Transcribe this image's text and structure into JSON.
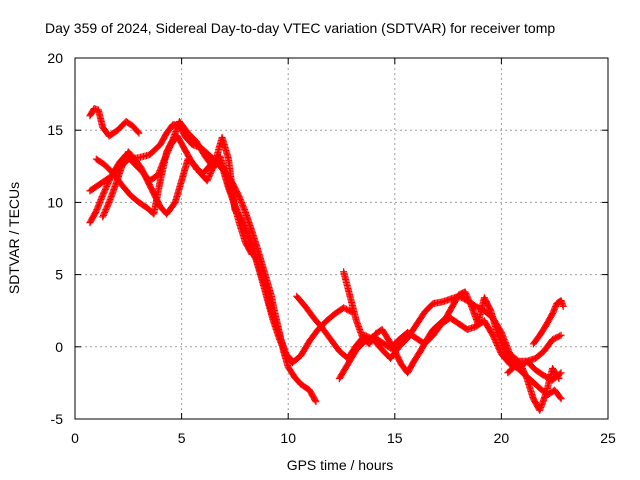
{
  "chart_data": {
    "type": "scatter",
    "title": "Day 359 of 2024, Sidereal Day-to-day VTEC variation (SDTVAR) for receiver tomp",
    "xlabel": "GPS time / hours",
    "ylabel": "SDTVAR / TECUs",
    "xlim": [
      0,
      25
    ],
    "ylim": [
      -5,
      20
    ],
    "x_ticks": [
      0,
      5,
      10,
      15,
      20,
      25
    ],
    "y_ticks": [
      -5,
      0,
      5,
      10,
      15,
      20
    ],
    "x_tick_labels": [
      "0",
      "5",
      "10",
      "15",
      "20",
      "25"
    ],
    "y_tick_labels": [
      "-5",
      "0",
      "5",
      "10",
      "15",
      "20"
    ],
    "grid": true,
    "marker": "+",
    "color": "#ff0000",
    "series": [
      {
        "x": [
          0.7,
          0.9,
          1.1,
          1.3,
          1.6,
          2.0,
          2.4,
          2.7,
          3.0
        ],
        "y": [
          16.0,
          16.5,
          16.4,
          15.2,
          14.6,
          15.0,
          15.6,
          15.3,
          14.8
        ]
      },
      {
        "x": [
          0.7,
          1.2,
          1.7,
          2.1,
          2.5,
          3.0,
          3.5,
          4.0,
          4.3,
          4.6,
          4.9,
          5.2,
          5.5,
          5.9,
          6.2,
          6.5,
          6.8,
          7.1,
          7.4,
          7.7,
          8.0,
          8.3,
          8.6,
          8.9,
          9.2,
          9.4,
          9.6,
          9.8,
          10.0,
          10.3,
          10.6,
          11.0,
          11.3
        ],
        "y": [
          10.8,
          11.3,
          11.8,
          12.4,
          13.0,
          13.1,
          13.3,
          14.0,
          14.8,
          15.4,
          15.3,
          14.5,
          14.0,
          13.8,
          13.4,
          13.0,
          12.5,
          12.0,
          11.3,
          10.4,
          9.3,
          8.0,
          6.6,
          5.1,
          3.6,
          2.2,
          0.9,
          -0.4,
          -1.4,
          -2.1,
          -2.6,
          -3.0,
          -3.8
        ]
      },
      {
        "x": [
          0.7,
          1.0,
          1.3,
          1.7,
          2.1,
          2.4,
          2.7,
          3.1,
          3.5,
          3.9,
          4.2,
          4.5,
          4.8,
          5.1,
          5.4,
          5.7,
          6.0,
          6.3,
          6.6,
          6.9,
          7.2,
          7.5,
          7.8,
          8.1,
          8.4,
          8.7,
          9.0,
          9.3,
          9.6,
          9.9,
          10.2,
          10.6,
          11.0,
          11.4,
          11.8,
          12.2,
          12.6,
          13.0
        ],
        "y": [
          8.6,
          9.4,
          10.5,
          11.8,
          12.8,
          13.3,
          12.8,
          12.2,
          11.5,
          11.9,
          13.0,
          14.0,
          14.6,
          13.8,
          13.0,
          12.3,
          12.0,
          12.5,
          13.0,
          12.5,
          11.0,
          9.8,
          8.8,
          7.8,
          6.5,
          5.0,
          3.4,
          1.8,
          0.5,
          -0.6,
          -1.1,
          -0.6,
          0.4,
          1.2,
          1.8,
          2.3,
          2.7,
          2.4
        ]
      },
      {
        "x": [
          1.0,
          1.4,
          1.8,
          2.2,
          2.6,
          3.0,
          3.4,
          3.7,
          4.0,
          4.3,
          4.6,
          4.9,
          5.3,
          5.7,
          6.1,
          6.5,
          6.9,
          7.2,
          7.5,
          7.9,
          8.3,
          8.7,
          9.1,
          9.5,
          9.9,
          10.2
        ],
        "y": [
          13.0,
          12.6,
          12.0,
          11.2,
          10.5,
          10.0,
          9.6,
          9.2,
          11.5,
          13.5,
          14.4,
          15.6,
          14.8,
          14.2,
          13.2,
          12.4,
          14.5,
          13.0,
          9.5,
          8.5,
          7.0,
          5.2,
          3.0,
          1.2,
          -0.5,
          -1.0
        ]
      },
      {
        "x": [
          1.3,
          1.6,
          1.9,
          2.2,
          2.5,
          2.8,
          3.1,
          3.4,
          3.7,
          4.0,
          4.3,
          4.7,
          5.0,
          5.3,
          5.6,
          5.9,
          6.2,
          6.5,
          6.8,
          7.1,
          7.4,
          7.7,
          8.0,
          8.3
        ],
        "y": [
          9.0,
          10.0,
          11.2,
          12.5,
          13.5,
          13.0,
          12.4,
          11.5,
          10.6,
          9.7,
          9.2,
          10.0,
          11.5,
          13.0,
          12.6,
          12.0,
          11.5,
          12.5,
          13.2,
          11.8,
          10.2,
          8.6,
          7.2,
          6.4
        ]
      },
      {
        "x": [
          10.4,
          10.8,
          11.2,
          11.6,
          12.0,
          12.4,
          12.8,
          13.2,
          13.6,
          14.0,
          14.4,
          14.8,
          15.2,
          15.6,
          16.0,
          16.4,
          16.8,
          17.2,
          17.6,
          18.0,
          18.4,
          18.8,
          19.2,
          19.6,
          20.0,
          20.4,
          20.8,
          21.2,
          21.6,
          22.0,
          22.4,
          22.8
        ],
        "y": [
          3.5,
          2.8,
          2.0,
          1.3,
          0.5,
          -0.3,
          -0.8,
          0.1,
          0.8,
          0.5,
          -0.2,
          -0.8,
          0.0,
          0.6,
          1.5,
          2.4,
          3.0,
          3.1,
          3.3,
          3.5,
          3.2,
          2.8,
          2.5,
          2.0,
          1.0,
          -0.5,
          -1.0,
          -1.0,
          -0.8,
          -0.3,
          0.5,
          0.8
        ]
      },
      {
        "x": [
          12.6,
          12.9,
          13.2,
          13.5,
          13.8,
          14.1,
          14.4,
          14.7,
          15.0,
          15.3,
          15.6,
          15.9,
          16.2,
          16.5,
          16.8,
          17.1,
          17.4,
          17.7,
          18.0,
          18.3,
          18.6,
          18.9,
          19.2,
          19.5,
          19.8,
          20.1,
          20.4,
          20.7,
          21.0,
          21.3,
          21.6,
          21.9,
          22.2,
          22.5,
          22.8
        ],
        "y": [
          5.2,
          3.5,
          1.8,
          0.6,
          0.2,
          0.9,
          1.2,
          0.5,
          -0.3,
          -1.2,
          -1.8,
          -1.0,
          -0.3,
          0.5,
          1.2,
          1.6,
          2.0,
          2.8,
          3.6,
          3.8,
          2.8,
          1.6,
          3.4,
          2.5,
          1.0,
          0.0,
          -0.8,
          -1.4,
          -1.8,
          -2.2,
          -2.6,
          -3.0,
          -3.3,
          -3.0,
          -3.6
        ]
      },
      {
        "x": [
          12.4,
          12.8,
          13.2,
          13.6,
          14.0,
          14.4,
          14.8,
          15.2,
          15.6,
          16.0,
          16.4,
          16.8,
          17.2,
          17.6,
          18.0,
          18.4,
          18.8,
          19.2,
          19.6,
          20.0,
          20.4,
          20.8,
          21.2,
          21.6,
          22.0,
          22.4,
          22.8
        ],
        "y": [
          -2.2,
          -1.2,
          -0.2,
          0.4,
          0.7,
          0.3,
          -0.1,
          0.5,
          1.0,
          0.6,
          0.2,
          0.8,
          1.6,
          2.0,
          1.6,
          1.2,
          1.4,
          1.8,
          0.8,
          -0.5,
          -1.2,
          -1.5,
          -1.0,
          -1.6,
          -2.0,
          -2.3,
          -1.8
        ]
      },
      {
        "x": [
          20.3,
          20.6,
          20.9,
          21.2,
          21.5,
          21.8,
          22.1,
          22.4,
          22.7
        ],
        "y": [
          -1.8,
          -1.4,
          -1.2,
          -2.2,
          -3.6,
          -4.4,
          -3.2,
          -1.5,
          -2.2
        ]
      },
      {
        "x": [
          21.5,
          21.8,
          22.1,
          22.4,
          22.6,
          22.8,
          22.9
        ],
        "y": [
          0.2,
          0.8,
          1.5,
          2.3,
          3.0,
          3.2,
          2.8
        ]
      }
    ]
  }
}
